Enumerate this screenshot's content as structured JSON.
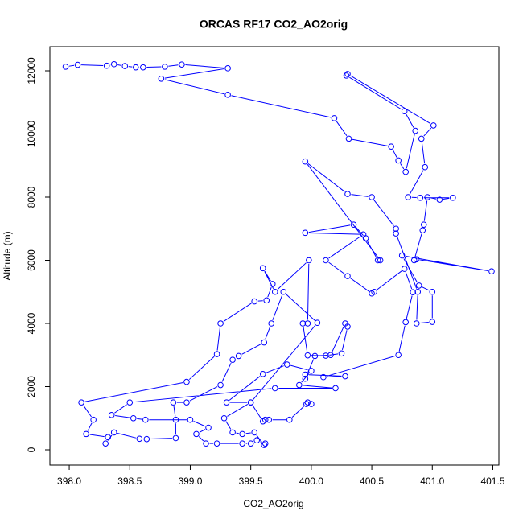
{
  "chart_data": {
    "type": "scatter-line",
    "title": "ORCAS RF17 CO2_AO2orig",
    "x_label": "CO2_AO2orig",
    "y_label": "Altitude (m)",
    "color": "#0000ff",
    "x": [
      397.97,
      398.07,
      398.31,
      398.37,
      398.46,
      398.55,
      398.61,
      398.79,
      398.93,
      399.31,
      398.76,
      399.31,
      400.19,
      400.31,
      400.66,
      400.72,
      400.78,
      400.86,
      400.77,
      400.29,
      400.3,
      401.01,
      400.91,
      400.94,
      400.8,
      400.9,
      401.17,
      401.06,
      400.96,
      400.93,
      400.92,
      400.85,
      400.87,
      401.49,
      400.75,
      400.89,
      401.0,
      401.0,
      400.87,
      400.88,
      400.7,
      400.7,
      400.5,
      400.3,
      399.95,
      400.57,
      400.55,
      400.45,
      400.35,
      399.95,
      400.43,
      400.12,
      400.3,
      400.5,
      400.52,
      400.77,
      400.84,
      400.78,
      400.72,
      400.1,
      400.28,
      399.95,
      399.95,
      400.03,
      400.16,
      400.28,
      400.3,
      400.25,
      400.12,
      399.97,
      399.93,
      399.97,
      399.98,
      399.7,
      399.6,
      399.68,
      399.63,
      399.53,
      399.25,
      399.22,
      398.97,
      398.1,
      398.2,
      398.14,
      398.32,
      398.3,
      398.37,
      398.58,
      398.64,
      398.88,
      398.88,
      398.86,
      398.97,
      399.25,
      399.35,
      399.4,
      399.61,
      399.67,
      399.77,
      400.05,
      399.5,
      399.3,
      399.6,
      399.8,
      400.0,
      399.9,
      400.2,
      399.7,
      398.5,
      398.35,
      398.53,
      398.63,
      399.0,
      399.15,
      399.05,
      399.13,
      399.22,
      399.43,
      399.5,
      399.55,
      399.62,
      399.61,
      399.53,
      399.43,
      399.35,
      399.28,
      399.5,
      399.6,
      399.62,
      399.65,
      399.82,
      399.96,
      399.97,
      400.0
    ],
    "values": [
      12130,
      12190,
      12160,
      12210,
      12150,
      12110,
      12110,
      12130,
      12200,
      12080,
      11750,
      11240,
      10500,
      9850,
      9600,
      9160,
      8800,
      10100,
      10720,
      11850,
      11900,
      10270,
      9850,
      8950,
      8000,
      7980,
      7980,
      7920,
      8000,
      7130,
      6950,
      6000,
      6030,
      5650,
      6150,
      5200,
      5000,
      4050,
      4000,
      5000,
      6850,
      7000,
      8000,
      8100,
      9130,
      6000,
      6000,
      6700,
      7130,
      6870,
      6820,
      6000,
      5500,
      4950,
      5000,
      5730,
      4990,
      4040,
      3000,
      2300,
      2330,
      2380,
      2250,
      2970,
      3000,
      4000,
      3900,
      3050,
      2980,
      2990,
      4000,
      4000,
      6000,
      5000,
      5750,
      5250,
      4730,
      4700,
      4000,
      3030,
      2150,
      1500,
      950,
      500,
      400,
      200,
      550,
      350,
      340,
      370,
      950,
      1500,
      1500,
      2050,
      2850,
      2970,
      3400,
      4000,
      5000,
      4020,
      1500,
      1500,
      2400,
      2700,
      2500,
      2050,
      1950,
      1950,
      1500,
      1100,
      1000,
      950,
      950,
      700,
      500,
      200,
      200,
      200,
      200,
      300,
      200,
      150,
      550,
      500,
      550,
      1000,
      1500,
      900,
      950,
      950,
      950,
      1450,
      1500,
      1450
    ],
    "xlim": [
      397.84,
      401.55
    ],
    "ylim": [
      -484,
      12764
    ],
    "xticks": [
      {
        "value": 398,
        "label": "398.0"
      },
      {
        "value": 398.5,
        "label": "398.5"
      },
      {
        "value": 399,
        "label": "399.0"
      },
      {
        "value": 399.5,
        "label": "399.5"
      },
      {
        "value": 400,
        "label": "400.0"
      },
      {
        "value": 400.5,
        "label": "400.5"
      },
      {
        "value": 401,
        "label": "401.0"
      },
      {
        "value": 401.5,
        "label": "401.5"
      }
    ],
    "yticks": [
      0,
      2000,
      4000,
      6000,
      8000,
      10000,
      12000
    ]
  }
}
